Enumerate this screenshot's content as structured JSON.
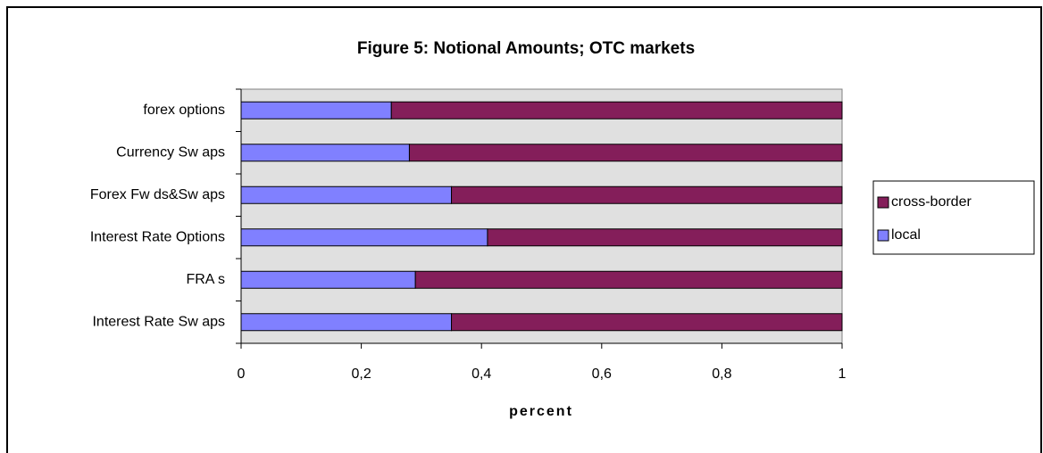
{
  "chart_data": {
    "type": "stacked_barh",
    "title": "Figure 5: Notional Amounts; OTC markets",
    "x_label": "percent",
    "categories": [
      "forex options",
      "Currency Sw aps",
      "Forex Fw ds&Sw aps",
      "Interest Rate Options",
      "FRA s",
      "Interest Rate Sw aps"
    ],
    "series": [
      {
        "name": "local",
        "color": "#8080ff",
        "values": [
          0.25,
          0.28,
          0.35,
          0.41,
          0.29,
          0.35
        ]
      },
      {
        "name": "cross-border",
        "color": "#841e5a",
        "values": [
          0.75,
          0.72,
          0.65,
          0.59,
          0.71,
          0.65
        ]
      }
    ],
    "xlim": [
      0,
      1
    ],
    "xticks": [
      0,
      {
        "value": 0.2,
        "label": "0,2"
      },
      {
        "value": 0.4,
        "label": "0,4"
      },
      {
        "value": 0.6,
        "label": "0,6"
      },
      {
        "value": 0.8,
        "label": "0,8"
      },
      1
    ],
    "legend": "right"
  }
}
